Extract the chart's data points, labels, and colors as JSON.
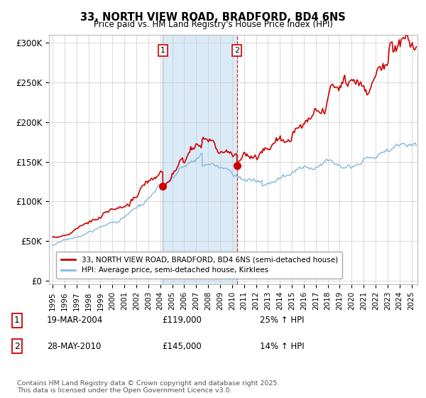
{
  "title": "33, NORTH VIEW ROAD, BRADFORD, BD4 6NS",
  "subtitle": "Price paid vs. HM Land Registry's House Price Index (HPI)",
  "ylabel_ticks": [
    "£0",
    "£50K",
    "£100K",
    "£150K",
    "£200K",
    "£250K",
    "£300K"
  ],
  "ytick_values": [
    0,
    50000,
    100000,
    150000,
    200000,
    250000,
    300000
  ],
  "ylim": [
    -5000,
    310000
  ],
  "xlim_start": 1994.7,
  "xlim_end": 2025.5,
  "sale1_year": 2004.21,
  "sale1_price": 119000,
  "sale2_year": 2010.41,
  "sale2_price": 145000,
  "shade_color": "#daeaf7",
  "red_line_color": "#cc0000",
  "blue_line_color": "#85b8d8",
  "vline1_color": "#aaaacc",
  "vline2_color": "#cc0000",
  "legend_label_red": "33, NORTH VIEW ROAD, BRADFORD, BD4 6NS (semi-detached house)",
  "legend_label_blue": "HPI: Average price, semi-detached house, Kirklees",
  "footer": "Contains HM Land Registry data © Crown copyright and database right 2025.\nThis data is licensed under the Open Government Licence v3.0.",
  "table_row1": [
    "1",
    "19-MAR-2004",
    "£119,000",
    "25% ↑ HPI"
  ],
  "table_row2": [
    "2",
    "28-MAY-2010",
    "£145,000",
    "14% ↑ HPI"
  ],
  "background_color": "#ffffff",
  "grid_color": "#cccccc",
  "noise_scale_red": 0.015,
  "noise_scale_blue": 0.01
}
